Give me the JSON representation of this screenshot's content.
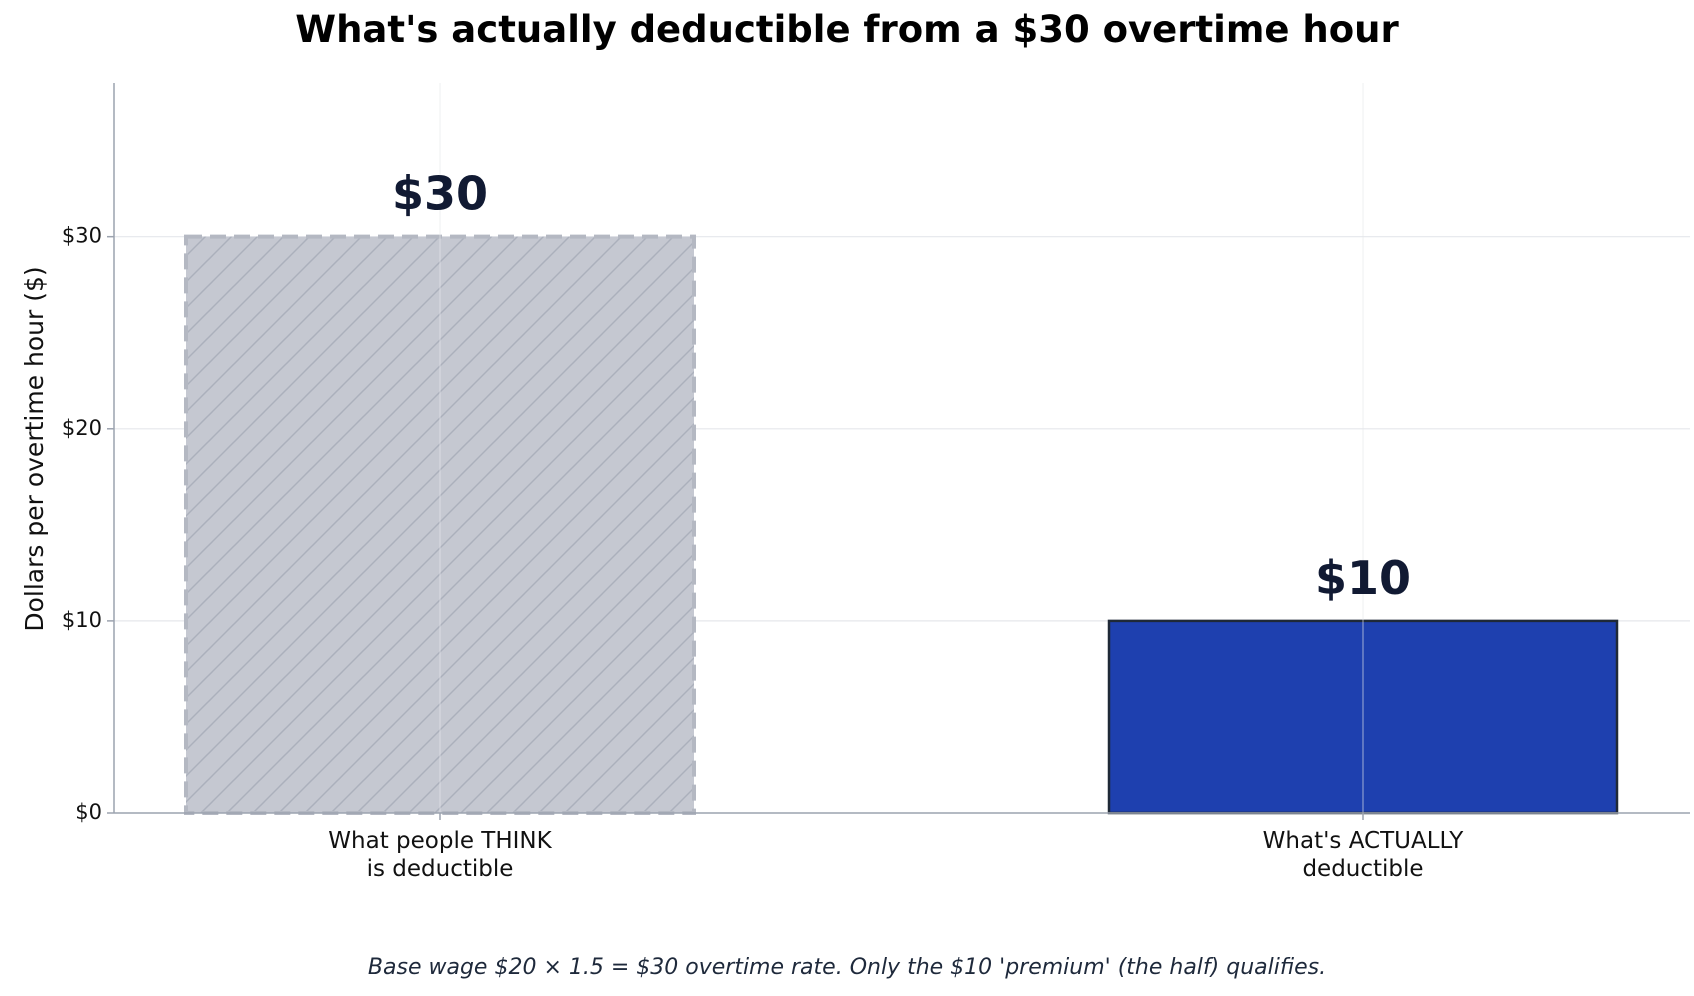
{
  "chart_data": {
    "type": "bar",
    "title": "What's actually deductible from a $30 overtime hour",
    "xlabel": "",
    "ylabel": "Dollars per overtime hour ($)",
    "ylim": [
      0,
      38
    ],
    "yticks": [
      0,
      10,
      20,
      30
    ],
    "ytick_labels": [
      "$0",
      "$10",
      "$20",
      "$30"
    ],
    "categories": [
      [
        "What people THINK",
        "is deductible"
      ],
      [
        "What's ACTUALLY",
        "deductible"
      ]
    ],
    "values": [
      30,
      10
    ],
    "data_labels": [
      "$30",
      "$10"
    ],
    "bar_styles": [
      {
        "fill": "#c5c8d1",
        "hatch": "diagonal",
        "hatch_color": "#abb0bc",
        "edge": "#b4b8c2",
        "edge_style": "dashed"
      },
      {
        "fill": "#1e40af",
        "hatch": "none",
        "edge": "#1f2937",
        "edge_style": "solid"
      }
    ],
    "data_label_color": "#111a33",
    "grid": true,
    "caption": "Base wage $20 × 1.5 = $30 overtime rate.  Only the $10 'premium' (the half) qualifies."
  }
}
